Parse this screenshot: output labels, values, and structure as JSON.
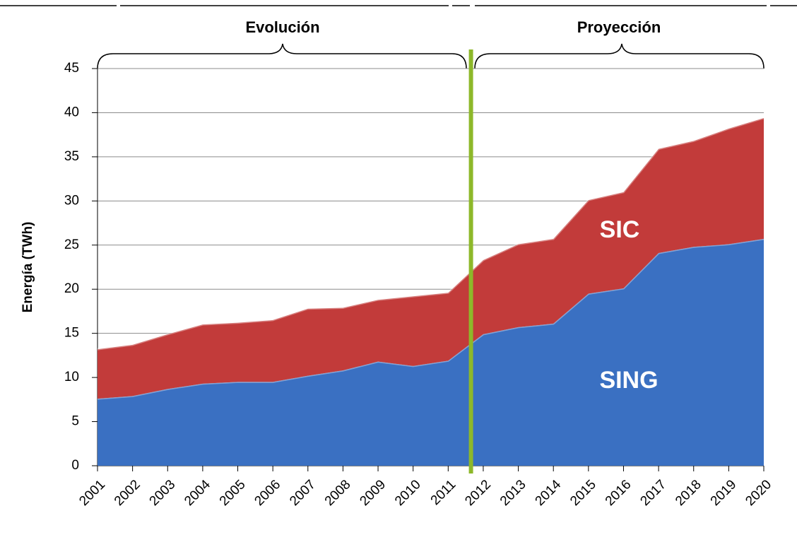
{
  "chart_data": {
    "type": "stacked-area",
    "y_label": "Energía (TWh)",
    "annotations": [
      "Evolución",
      "Proyección"
    ],
    "categories": [
      "2001",
      "2002",
      "2003",
      "2004",
      "2005",
      "2006",
      "2007",
      "2008",
      "2009",
      "2010",
      "2011",
      "2012",
      "2013",
      "2014",
      "2015",
      "2016",
      "2017",
      "2018",
      "2019",
      "2020"
    ],
    "series": [
      {
        "name": "SING",
        "color": "#3a70c2",
        "values": [
          7.6,
          7.9,
          8.7,
          9.3,
          9.5,
          9.5,
          10.2,
          10.8,
          11.8,
          11.3,
          11.9,
          14.9,
          15.7,
          16.1,
          19.5,
          20.1,
          24.1,
          24.8,
          25.1,
          25.7
        ]
      },
      {
        "name": "SIC",
        "color": "#c23b3a",
        "values": [
          5.6,
          5.8,
          6.2,
          6.7,
          6.7,
          7.0,
          7.6,
          7.1,
          7.0,
          7.9,
          7.7,
          8.4,
          9.4,
          9.6,
          10.6,
          10.9,
          11.8,
          12.0,
          13.1,
          13.7
        ]
      }
    ],
    "ylim": [
      0,
      45
    ],
    "yticks": [
      0,
      5,
      10,
      15,
      20,
      25,
      30,
      35,
      40,
      45
    ],
    "grid": true
  }
}
